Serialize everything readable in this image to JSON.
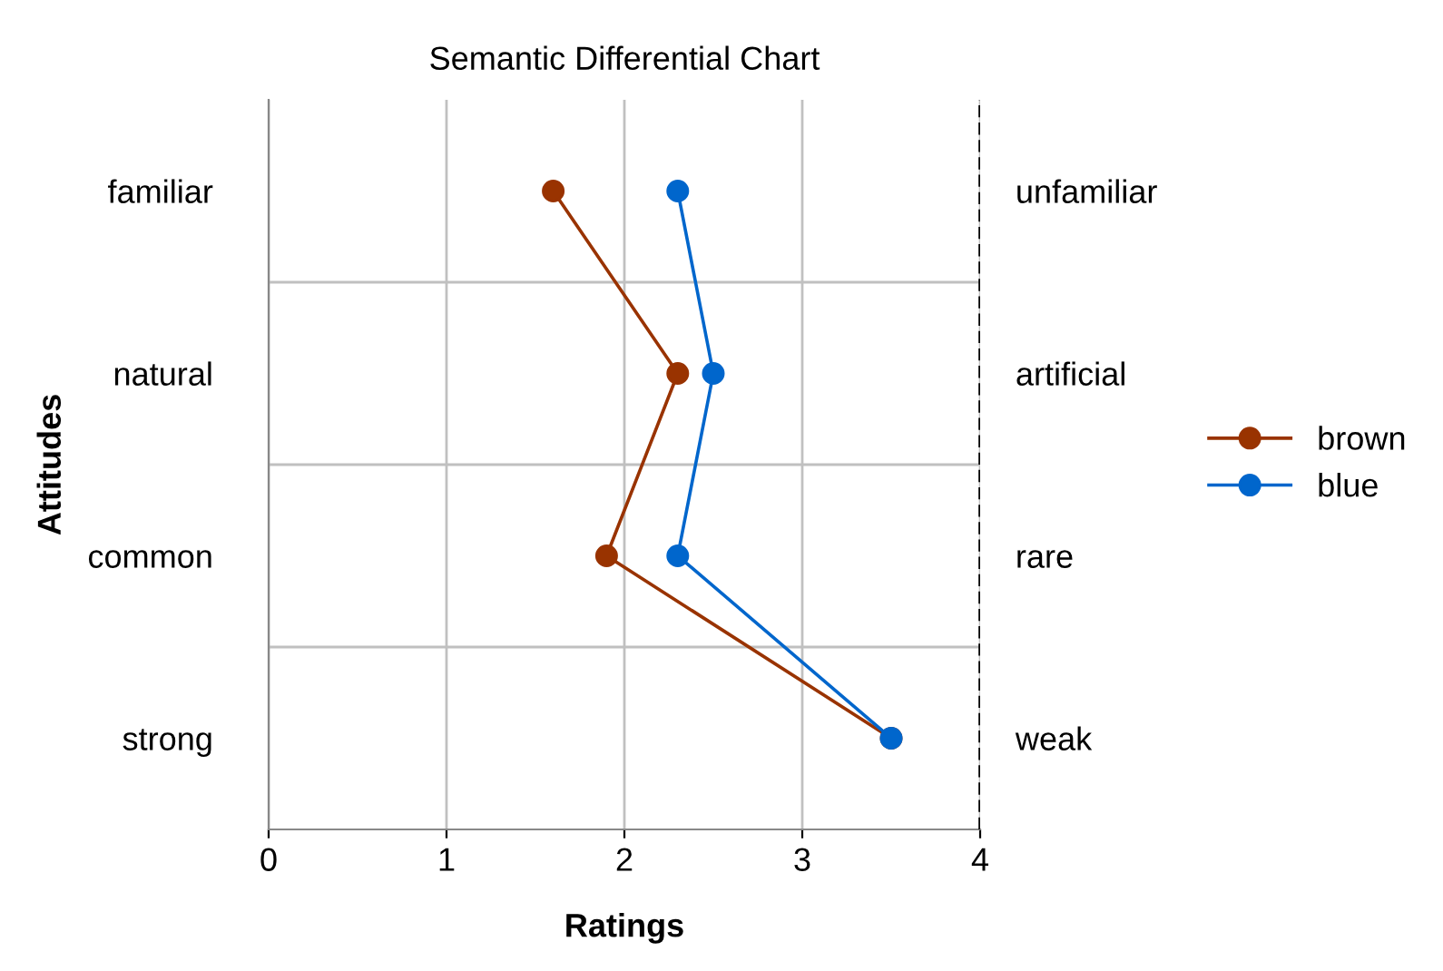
{
  "chart_data": {
    "type": "line",
    "orientation": "horizontal",
    "title": "Semantic Differential Chart",
    "xlabel": "Ratings",
    "ylabel": "Attitudes",
    "categories": [
      "familiar",
      "natural",
      "common",
      "strong"
    ],
    "y2_categories": [
      "unfamiliar",
      "artificial",
      "rare",
      "weak"
    ],
    "series": [
      {
        "name": "brown",
        "color": "#993300",
        "values": [
          1.6,
          2.3,
          1.9,
          3.5
        ]
      },
      {
        "name": "blue",
        "color": "#0066cc",
        "values": [
          2.3,
          2.5,
          2.3,
          3.5
        ]
      }
    ],
    "xlim": [
      0,
      4
    ],
    "xticks": [
      0,
      1,
      2,
      3,
      4
    ],
    "grid": true,
    "legend": "right",
    "marker": "circle",
    "line_style": "solid",
    "ref_lines": [
      {
        "axis": "x",
        "value": 4,
        "label": null,
        "color": "#000000",
        "line_style": "dashed"
      }
    ]
  }
}
